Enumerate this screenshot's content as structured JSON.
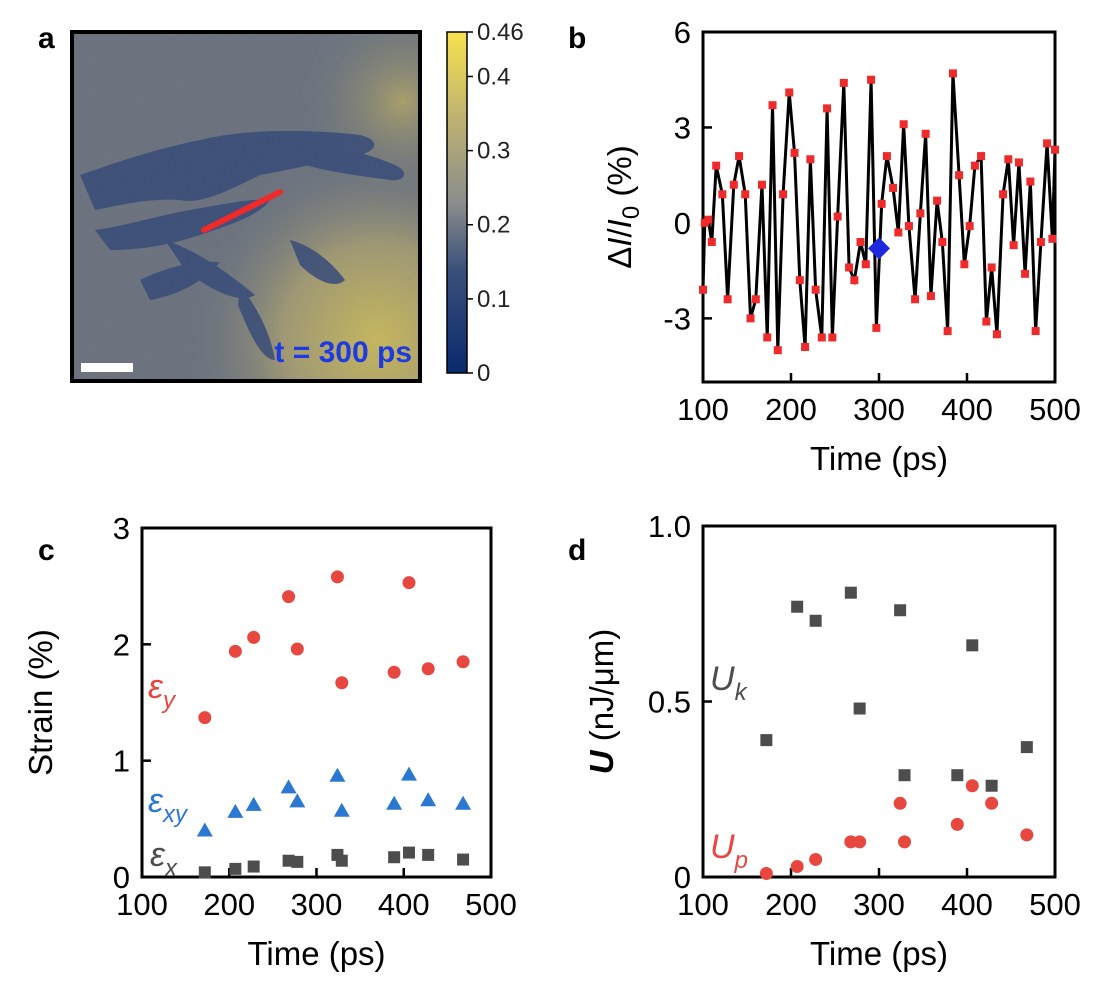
{
  "colors": {
    "map_low": "#0a2a6e",
    "map_mid": "#8a8d8c",
    "map_high": "#f7e24e",
    "red_marker": "#ee2a2a",
    "red_circle": "#e8473f",
    "blue_triangle": "#2a78d1",
    "gray_square": "#4d4d4d",
    "highlight_diamond": "#1f2ae0",
    "stamp_text": "#1d3be0"
  },
  "panel_a": {
    "letter": "a",
    "time_stamp": "t = 300 ps",
    "colorbar": {
      "ticks": [
        "0.46",
        "0.4",
        "0.3",
        "0.2",
        "0.1",
        "0"
      ],
      "min": 0,
      "max": 0.46
    }
  },
  "chart_data": [
    {
      "panel": "b",
      "type": "line",
      "xlabel": "Time (ps)",
      "ylabel": "ΔI/I0 (%)",
      "xlim": [
        100,
        500
      ],
      "ylim": [
        -5,
        6
      ],
      "xticks": [
        "100",
        "200",
        "300",
        "400",
        "500"
      ],
      "yticks": [
        "6",
        "3",
        "0",
        "-3"
      ],
      "grid": false,
      "series": [
        {
          "x": [
            100,
            102,
            106,
            110,
            115,
            122,
            128,
            135,
            141,
            148,
            154,
            160,
            167,
            173,
            179,
            185,
            191,
            198,
            204,
            210,
            216,
            222,
            228,
            235,
            241,
            247,
            253,
            260,
            266,
            272,
            279,
            285,
            291,
            297,
            303,
            309,
            316,
            322,
            328,
            334,
            341,
            347,
            353,
            359,
            366,
            372,
            378,
            384,
            391,
            397,
            403,
            409,
            416,
            422,
            428,
            434,
            441,
            447,
            453,
            459,
            466,
            472,
            478,
            484,
            491,
            497,
            500
          ],
          "y": [
            -2.1,
            0.0,
            0.1,
            -0.6,
            1.8,
            0.9,
            -2.4,
            1.2,
            2.1,
            0.9,
            -3.0,
            -2.4,
            1.2,
            -3.6,
            3.7,
            -4.0,
            0.9,
            4.1,
            2.2,
            -1.8,
            -3.9,
            2.0,
            -2.1,
            -3.6,
            3.6,
            -3.6,
            0.2,
            4.4,
            -1.4,
            -1.8,
            -0.6,
            -1.3,
            4.5,
            -3.3,
            0.6,
            2.1,
            1.1,
            -0.3,
            3.1,
            -0.1,
            -2.4,
            0.3,
            2.8,
            -2.3,
            0.7,
            -0.6,
            -3.4,
            4.7,
            1.5,
            -1.3,
            -0.1,
            1.8,
            2.1,
            -3.1,
            -1.4,
            -3.5,
            0.9,
            2.0,
            -0.7,
            1.9,
            -1.6,
            1.3,
            -3.4,
            -0.6,
            2.5,
            -0.5,
            2.3
          ]
        }
      ],
      "highlight": {
        "x": 300,
        "y": -0.8
      }
    },
    {
      "panel": "c",
      "type": "scatter",
      "xlabel": "Time (ps)",
      "ylabel": "Strain (%)",
      "xlim": [
        100,
        500
      ],
      "ylim": [
        0,
        3
      ],
      "xticks": [
        "100",
        "200",
        "300",
        "400",
        "500"
      ],
      "yticks": [
        "3",
        "2",
        "1",
        "0"
      ],
      "grid": false,
      "series": [
        {
          "label_main": "ε",
          "label_sub": "y",
          "marker": "circle",
          "x": [
            172,
            207,
            228,
            268,
            278,
            324,
            329,
            389,
            406,
            428,
            468
          ],
          "y": [
            1.37,
            1.94,
            2.06,
            2.41,
            1.96,
            2.58,
            1.67,
            1.76,
            2.53,
            1.79,
            1.85
          ]
        },
        {
          "label_main": "ε",
          "label_sub": "xy",
          "marker": "triangle",
          "x": [
            172,
            207,
            228,
            268,
            278,
            324,
            329,
            389,
            406,
            428,
            468
          ],
          "y": [
            0.4,
            0.56,
            0.62,
            0.77,
            0.65,
            0.87,
            0.57,
            0.63,
            0.88,
            0.66,
            0.63
          ]
        },
        {
          "label_main": "ε",
          "label_sub": "x",
          "marker": "square",
          "x": [
            172,
            207,
            228,
            268,
            278,
            324,
            329,
            389,
            406,
            428,
            468
          ],
          "y": [
            0.04,
            0.07,
            0.09,
            0.14,
            0.13,
            0.19,
            0.14,
            0.17,
            0.21,
            0.19,
            0.15
          ]
        }
      ]
    },
    {
      "panel": "d",
      "type": "scatter",
      "xlabel": "Time (ps)",
      "ylabel": "U (nJ/μm)",
      "xlim": [
        100,
        500
      ],
      "ylim": [
        0,
        1.0
      ],
      "xticks": [
        "100",
        "200",
        "300",
        "400",
        "500"
      ],
      "yticks": [
        "1.0",
        "0.5",
        "0"
      ],
      "grid": false,
      "series": [
        {
          "label_main": "U",
          "label_sub": "k",
          "marker": "square",
          "x": [
            172,
            207,
            228,
            268,
            278,
            324,
            329,
            389,
            406,
            428,
            468
          ],
          "y": [
            0.39,
            0.77,
            0.73,
            0.81,
            0.48,
            0.76,
            0.29,
            0.29,
            0.66,
            0.26,
            0.37
          ]
        },
        {
          "label_main": "U",
          "label_sub": "p",
          "marker": "circle",
          "x": [
            172,
            207,
            228,
            268,
            278,
            324,
            329,
            389,
            406,
            428,
            468
          ],
          "y": [
            0.01,
            0.03,
            0.05,
            0.1,
            0.1,
            0.21,
            0.1,
            0.15,
            0.26,
            0.21,
            0.12
          ]
        }
      ]
    }
  ]
}
